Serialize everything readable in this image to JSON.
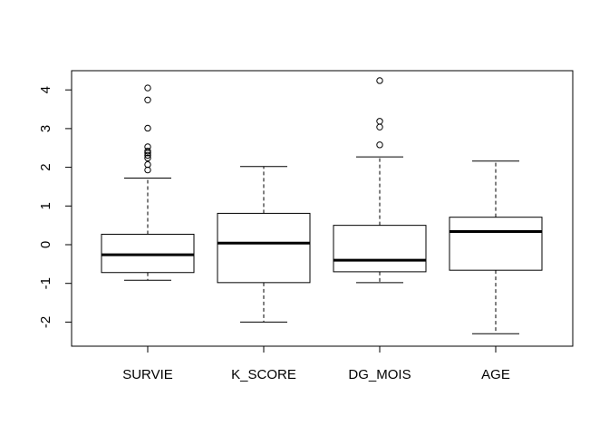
{
  "chart_data": {
    "type": "box",
    "categories": [
      "SURVIE",
      "K_SCORE",
      "DG_MOIS",
      "AGE"
    ],
    "ylim": [
      -2.6,
      4.5
    ],
    "yticks": [
      -2,
      -1,
      0,
      1,
      2,
      3,
      4
    ],
    "ytick_labels": [
      "-2",
      "-1",
      "0",
      "1",
      "2",
      "3",
      "4"
    ],
    "grid": false,
    "legend": "none",
    "boxes": [
      {
        "name": "SURVIE",
        "whisker_low": -0.92,
        "q1": -0.72,
        "median": -0.26,
        "q3": 0.27,
        "whisker_high": 1.72,
        "outliers": [
          1.93,
          2.07,
          2.24,
          2.31,
          2.37,
          2.42,
          2.53,
          3.01,
          3.74,
          4.05
        ]
      },
      {
        "name": "K_SCORE",
        "whisker_low": -2.0,
        "q1": -0.98,
        "median": 0.04,
        "q3": 0.81,
        "whisker_high": 2.02,
        "outliers": []
      },
      {
        "name": "DG_MOIS",
        "whisker_low": -0.98,
        "q1": -0.7,
        "median": -0.4,
        "q3": 0.5,
        "whisker_high": 2.27,
        "outliers": [
          2.58,
          3.04,
          3.19,
          4.24
        ]
      },
      {
        "name": "AGE",
        "whisker_low": -2.3,
        "q1": -0.66,
        "median": 0.34,
        "q3": 0.71,
        "whisker_high": 2.16,
        "outliers": []
      }
    ]
  }
}
